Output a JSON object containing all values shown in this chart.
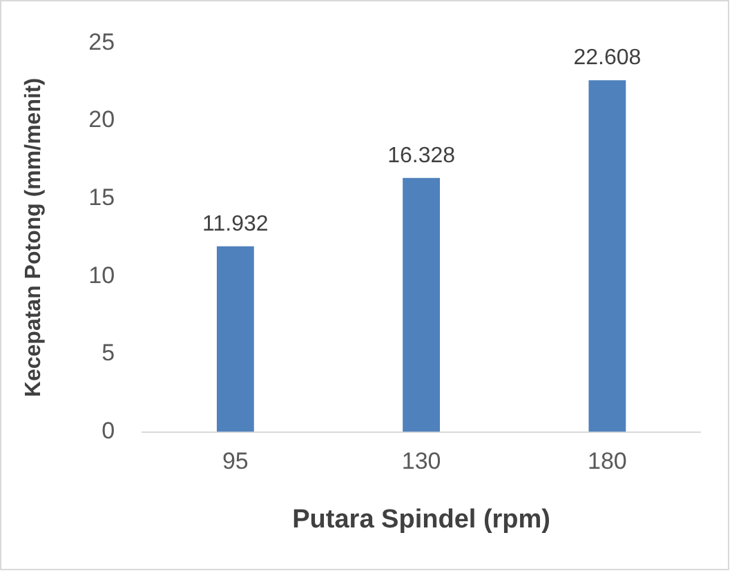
{
  "chart_data": {
    "type": "bar",
    "xlabel": "Putara Spindel (rpm)",
    "ylabel": "Kecepatan Potong (mm/menit)",
    "categories": [
      "95",
      "130",
      "180"
    ],
    "values": [
      11.932,
      16.328,
      22.608
    ],
    "color": "#4f81bd",
    "ylim": [
      0,
      25
    ],
    "yticks": [
      0,
      5,
      10,
      15,
      20,
      25
    ],
    "grid": false,
    "legend": false,
    "data_labels": true
  }
}
